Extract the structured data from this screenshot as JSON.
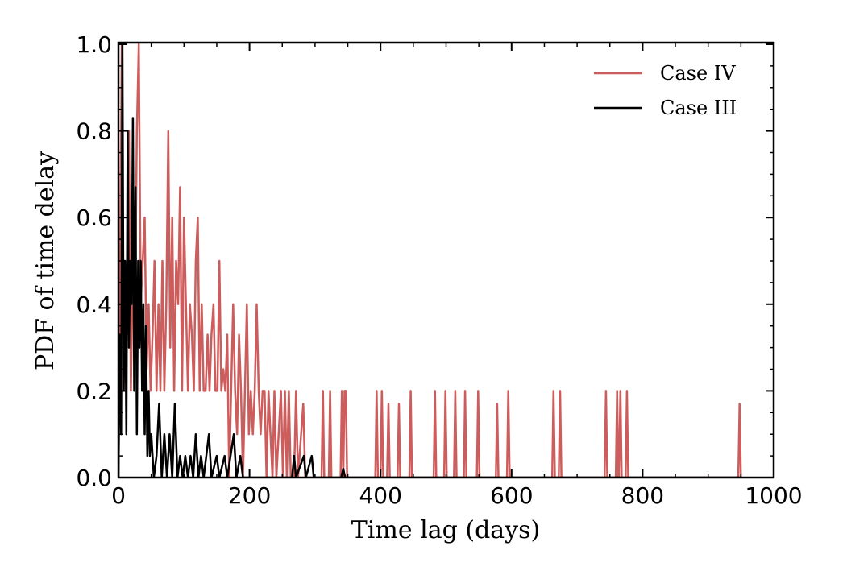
{
  "chart_data": {
    "type": "line",
    "xlabel": "Time lag (days)",
    "ylabel": "PDF of time delay",
    "xlim": [
      0,
      1000
    ],
    "ylim": [
      0,
      1
    ],
    "xticks": [
      0,
      200,
      400,
      600,
      800,
      1000
    ],
    "yticks": [
      {
        "value": 0,
        "label": "0.0"
      },
      {
        "value": 0.2,
        "label": "0.2"
      },
      {
        "value": 0.4,
        "label": "0.4"
      },
      {
        "value": 0.6,
        "label": "0.6"
      },
      {
        "value": 0.8,
        "label": "0.8"
      },
      {
        "value": 1,
        "label": "1.0"
      }
    ],
    "xminorticks": [
      50,
      100,
      150,
      250,
      300,
      350,
      450,
      500,
      550,
      650,
      700,
      750,
      850,
      900,
      950
    ],
    "yminorticks": [
      0.05,
      0.1,
      0.15,
      0.25,
      0.3,
      0.35,
      0.45,
      0.5,
      0.55,
      0.65,
      0.7,
      0.75,
      0.85,
      0.9,
      0.95
    ],
    "legend": "upper right",
    "series": [
      {
        "name": "Case IV",
        "color": "#cd5c5c",
        "x": [
          0,
          2,
          5,
          8,
          10,
          13,
          16,
          19,
          22,
          25,
          28,
          31,
          34,
          37,
          40,
          43,
          46,
          49,
          52,
          55,
          58,
          61,
          64,
          67,
          70,
          73,
          76,
          79,
          82,
          85,
          88,
          91,
          94,
          97,
          100,
          103,
          106,
          109,
          112,
          115,
          118,
          121,
          124,
          127,
          130,
          133,
          136,
          139,
          142,
          145,
          148,
          151,
          154,
          157,
          160,
          163,
          166,
          169,
          172,
          175,
          178,
          181,
          184,
          187,
          190,
          193,
          196,
          199,
          202,
          205,
          208,
          211,
          214,
          217,
          220,
          223,
          226,
          229,
          232,
          235,
          238,
          241,
          248,
          251,
          254,
          257,
          260,
          263,
          268,
          271,
          274,
          282,
          285,
          310,
          312,
          314,
          321,
          323,
          325,
          339,
          341,
          343,
          345,
          347,
          349,
          392,
          394,
          396,
          400,
          402,
          404,
          410,
          412,
          414,
          426,
          428,
          430,
          444,
          446,
          448,
          481,
          483,
          485,
          497,
          499,
          501,
          512,
          514,
          516,
          527,
          529,
          531,
          547,
          549,
          551,
          576,
          578,
          580,
          593,
          595,
          597,
          662,
          664,
          666,
          672,
          674,
          676,
          742,
          744,
          746,
          759,
          761,
          763,
          764,
          766,
          768,
          774,
          776,
          778,
          946,
          948,
          950
        ],
        "values": [
          0,
          0.33,
          1.0,
          0.2,
          0.5,
          0.33,
          0.8,
          0.2,
          0.5,
          0.33,
          0.8,
          1.0,
          0.4,
          0.5,
          0.6,
          0.25,
          0.4,
          0.2,
          0.33,
          0.5,
          0.2,
          0.4,
          0.2,
          0.5,
          0.2,
          0.4,
          0.8,
          0.3,
          0.6,
          0.2,
          0.5,
          0.4,
          0.67,
          0.2,
          0.6,
          0.4,
          0.2,
          0.4,
          0.33,
          0.2,
          0.5,
          0.6,
          0.2,
          0.4,
          0.2,
          0.2,
          0.33,
          0.2,
          0.33,
          0.4,
          0.2,
          0.2,
          0.5,
          0.2,
          0.25,
          0.2,
          0.33,
          0,
          0.2,
          0.4,
          0.2,
          0.1,
          0.33,
          0.2,
          0,
          0.2,
          0.4,
          0.1,
          0.2,
          0.1,
          0.2,
          0.4,
          0.2,
          0.1,
          0.2,
          0.2,
          0,
          0.2,
          0.1,
          0,
          0.2,
          0,
          0.2,
          0,
          0.2,
          0,
          0.2,
          0,
          0,
          0.2,
          0,
          0.17,
          0,
          0,
          0.2,
          0,
          0,
          0.2,
          0,
          0,
          0.2,
          0,
          0.2,
          0.2,
          0,
          0,
          0.2,
          0,
          0,
          0.2,
          0,
          0,
          0.17,
          0,
          0,
          0.17,
          0,
          0,
          0.2,
          0,
          0,
          0.2,
          0,
          0,
          0.2,
          0,
          0,
          0.2,
          0,
          0,
          0.2,
          0,
          0,
          0.2,
          0,
          0,
          0.17,
          0,
          0,
          0.2,
          0,
          0,
          0.2,
          0,
          0,
          0.2,
          0,
          0,
          0.2,
          0,
          0,
          0.2,
          0,
          0,
          0.2,
          0,
          0,
          0.2,
          0,
          0,
          0.17,
          0
        ]
      },
      {
        "name": "Case III",
        "color": "#000000",
        "x": [
          0,
          2,
          4,
          6,
          8,
          10,
          12,
          14,
          16,
          18,
          20,
          22,
          24,
          26,
          28,
          30,
          32,
          34,
          36,
          38,
          40,
          42,
          44,
          46,
          48,
          50,
          54,
          58,
          62,
          66,
          70,
          74,
          78,
          82,
          86,
          90,
          94,
          98,
          102,
          106,
          110,
          114,
          118,
          122,
          126,
          130,
          138,
          142,
          150,
          154,
          162,
          166,
          176,
          180,
          186,
          190,
          265,
          268,
          271,
          283,
          286,
          295,
          298,
          340,
          343,
          346,
          950
        ],
        "values": [
          0,
          0.33,
          0.1,
          1.0,
          0.2,
          0.5,
          0.1,
          0.8,
          0.3,
          0.5,
          0.4,
          0.83,
          0.2,
          0.67,
          0.1,
          0.5,
          0.3,
          0.5,
          0.2,
          0.4,
          0.1,
          0.35,
          0.05,
          0.2,
          0.05,
          0.1,
          0,
          0.05,
          0.17,
          0,
          0.1,
          0,
          0.1,
          0,
          0.17,
          0,
          0.05,
          0,
          0.05,
          0,
          0.05,
          0,
          0.1,
          0,
          0.05,
          0,
          0.1,
          0,
          0.05,
          0,
          0.05,
          0,
          0.1,
          0,
          0.05,
          0,
          0,
          0.05,
          0,
          0.05,
          0,
          0.05,
          0,
          0,
          0.02,
          0,
          0
        ]
      }
    ]
  }
}
